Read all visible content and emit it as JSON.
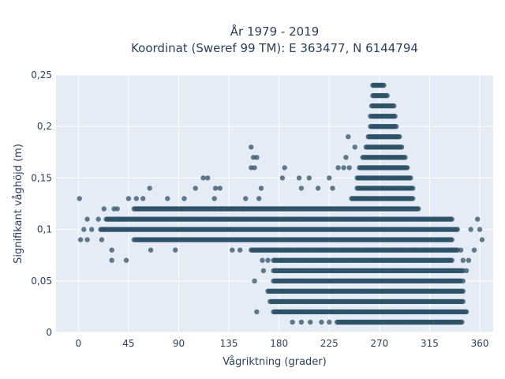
{
  "chart_data": {
    "type": "scatter",
    "title_lines": [
      "År 1979 - 2019",
      "Koordinat (Sweref 99 TM): E 363477, N 6144794"
    ],
    "xlabel": "Vågriktning (grader)",
    "ylabel": "Signifikant våghöjd (m)",
    "xlim": [
      -20,
      372
    ],
    "ylim": [
      0,
      0.25
    ],
    "x_ticks": [
      0,
      45,
      90,
      135,
      180,
      225,
      270,
      315,
      360
    ],
    "x_tick_labels": [
      "0",
      "45",
      "90",
      "135",
      "180",
      "225",
      "270",
      "315",
      "360"
    ],
    "y_ticks": [
      0,
      0.05,
      0.1,
      0.15,
      0.2,
      0.25
    ],
    "y_tick_labels": [
      "0",
      "0,05",
      "0,1",
      "0,15",
      "0,2",
      "0,25"
    ],
    "grid": true,
    "marker_color": "#2e5167",
    "background_color": "#e5ecf6",
    "series": [
      {
        "bands": [
          {
            "y": 0.01,
            "x_min": 232,
            "x_max": 344
          },
          {
            "y": 0.02,
            "x_min": 175,
            "x_max": 348
          },
          {
            "y": 0.03,
            "x_min": 172,
            "x_max": 345
          },
          {
            "y": 0.04,
            "x_min": 170,
            "x_max": 345
          },
          {
            "y": 0.05,
            "x_min": 175,
            "x_max": 343
          },
          {
            "y": 0.06,
            "x_min": 175,
            "x_max": 345
          },
          {
            "y": 0.07,
            "x_min": 175,
            "x_max": 335
          },
          {
            "y": 0.08,
            "x_min": 155,
            "x_max": 340
          },
          {
            "y": 0.09,
            "x_min": 50,
            "x_max": 335
          },
          {
            "y": 0.1,
            "x_min": 20,
            "x_max": 340
          },
          {
            "y": 0.11,
            "x_min": 25,
            "x_max": 335
          },
          {
            "y": 0.12,
            "x_min": 50,
            "x_max": 305
          },
          {
            "y": 0.13,
            "x_min": 245,
            "x_max": 300
          },
          {
            "y": 0.14,
            "x_min": 250,
            "x_max": 300
          },
          {
            "y": 0.15,
            "x_min": 250,
            "x_max": 298
          },
          {
            "y": 0.16,
            "x_min": 252,
            "x_max": 295
          },
          {
            "y": 0.17,
            "x_min": 255,
            "x_max": 293
          },
          {
            "y": 0.18,
            "x_min": 258,
            "x_max": 290
          },
          {
            "y": 0.19,
            "x_min": 260,
            "x_max": 288
          },
          {
            "y": 0.2,
            "x_min": 262,
            "x_max": 285
          },
          {
            "y": 0.21,
            "x_min": 262,
            "x_max": 284
          },
          {
            "y": 0.22,
            "x_min": 263,
            "x_max": 283
          },
          {
            "y": 0.23,
            "x_min": 264,
            "x_max": 277
          },
          {
            "y": 0.24,
            "x_min": 264,
            "x_max": 274
          }
        ],
        "scattered_points": [
          {
            "x": 1,
            "y": 0.13
          },
          {
            "x": 2,
            "y": 0.09
          },
          {
            "x": 5,
            "y": 0.1
          },
          {
            "x": 8,
            "y": 0.11
          },
          {
            "x": 8,
            "y": 0.09
          },
          {
            "x": 12,
            "y": 0.1
          },
          {
            "x": 18,
            "y": 0.11
          },
          {
            "x": 21,
            "y": 0.09
          },
          {
            "x": 22,
            "y": 0.1
          },
          {
            "x": 23,
            "y": 0.12
          },
          {
            "x": 30,
            "y": 0.08
          },
          {
            "x": 30,
            "y": 0.07
          },
          {
            "x": 32,
            "y": 0.12
          },
          {
            "x": 35,
            "y": 0.12
          },
          {
            "x": 37,
            "y": 0.11
          },
          {
            "x": 43,
            "y": 0.07
          },
          {
            "x": 45,
            "y": 0.13
          },
          {
            "x": 52,
            "y": 0.13
          },
          {
            "x": 58,
            "y": 0.13
          },
          {
            "x": 64,
            "y": 0.14
          },
          {
            "x": 65,
            "y": 0.08
          },
          {
            "x": 80,
            "y": 0.13
          },
          {
            "x": 87,
            "y": 0.08
          },
          {
            "x": 95,
            "y": 0.13
          },
          {
            "x": 105,
            "y": 0.14
          },
          {
            "x": 112,
            "y": 0.15
          },
          {
            "x": 116,
            "y": 0.15
          },
          {
            "x": 122,
            "y": 0.13
          },
          {
            "x": 123,
            "y": 0.14
          },
          {
            "x": 127,
            "y": 0.14
          },
          {
            "x": 128,
            "y": 0.12
          },
          {
            "x": 138,
            "y": 0.08
          },
          {
            "x": 145,
            "y": 0.08
          },
          {
            "x": 148,
            "y": 0.12
          },
          {
            "x": 150,
            "y": 0.13
          },
          {
            "x": 155,
            "y": 0.18
          },
          {
            "x": 157,
            "y": 0.17
          },
          {
            "x": 160,
            "y": 0.17
          },
          {
            "x": 158,
            "y": 0.16
          },
          {
            "x": 155,
            "y": 0.16
          },
          {
            "x": 162,
            "y": 0.13
          },
          {
            "x": 164,
            "y": 0.14
          },
          {
            "x": 166,
            "y": 0.06
          },
          {
            "x": 165,
            "y": 0.07
          },
          {
            "x": 170,
            "y": 0.07
          },
          {
            "x": 158,
            "y": 0.05
          },
          {
            "x": 160,
            "y": 0.02
          },
          {
            "x": 183,
            "y": 0.15
          },
          {
            "x": 185,
            "y": 0.16
          },
          {
            "x": 198,
            "y": 0.15
          },
          {
            "x": 200,
            "y": 0.14
          },
          {
            "x": 207,
            "y": 0.15
          },
          {
            "x": 215,
            "y": 0.14
          },
          {
            "x": 225,
            "y": 0.15
          },
          {
            "x": 228,
            "y": 0.14
          },
          {
            "x": 233,
            "y": 0.16
          },
          {
            "x": 238,
            "y": 0.16
          },
          {
            "x": 240,
            "y": 0.17
          },
          {
            "x": 242,
            "y": 0.19
          },
          {
            "x": 248,
            "y": 0.18
          },
          {
            "x": 192,
            "y": 0.01
          },
          {
            "x": 200,
            "y": 0.01
          },
          {
            "x": 208,
            "y": 0.01
          },
          {
            "x": 218,
            "y": 0.01
          },
          {
            "x": 225,
            "y": 0.01
          },
          {
            "x": 243,
            "y": 0.16
          },
          {
            "x": 345,
            "y": 0.07
          },
          {
            "x": 345,
            "y": 0.05
          },
          {
            "x": 343,
            "y": 0.08
          },
          {
            "x": 348,
            "y": 0.06
          },
          {
            "x": 350,
            "y": 0.07
          },
          {
            "x": 352,
            "y": 0.1
          },
          {
            "x": 355,
            "y": 0.08
          },
          {
            "x": 358,
            "y": 0.11
          },
          {
            "x": 360,
            "y": 0.1
          },
          {
            "x": 362,
            "y": 0.09
          }
        ]
      }
    ]
  }
}
